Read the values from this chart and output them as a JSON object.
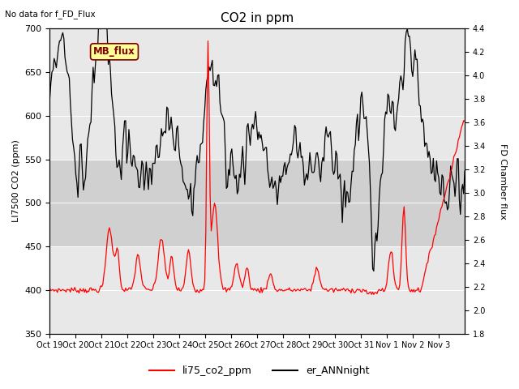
{
  "title": "CO2 in ppm",
  "top_left_text": "No data for f_FD_Flux",
  "ylabel_left": "LI7500 CO2 (ppm)",
  "ylabel_right": "FD Chamber flux",
  "ylim_left": [
    350,
    700
  ],
  "ylim_right": [
    1.8,
    4.4
  ],
  "yticks_left": [
    350,
    400,
    450,
    500,
    550,
    600,
    650,
    700
  ],
  "yticks_right": [
    1.8,
    2.0,
    2.2,
    2.4,
    2.6,
    2.8,
    3.0,
    3.2,
    3.4,
    3.6,
    3.8,
    4.0,
    4.2,
    4.4
  ],
  "xtick_labels": [
    "Oct 19",
    "Oct 20",
    "Oct 21",
    "Oct 22",
    "Oct 23",
    "Oct 24",
    "Oct 25",
    "Oct 26",
    "Oct 27",
    "Oct 28",
    "Oct 29",
    "Oct 30",
    "Oct 31",
    "Nov 1",
    "Nov 2",
    "Nov 3"
  ],
  "legend_labels": [
    "li75_co2_ppm",
    "er_ANNnight"
  ],
  "legend_colors": [
    "red",
    "black"
  ],
  "line1_color": "red",
  "line2_color": "black",
  "bg_color": "#e8e8e8",
  "hspan_lo": 450,
  "hspan_hi": 550,
  "hspan_color": "#d0d0d0",
  "box_label": "MB_flux",
  "box_facecolor": "#ffff99",
  "box_edgecolor": "#800000",
  "box_text_color": "#800000"
}
